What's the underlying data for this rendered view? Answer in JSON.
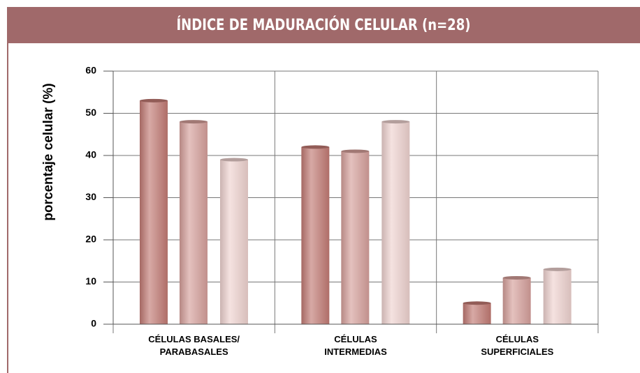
{
  "chart_data": {
    "type": "bar",
    "title": "ÍNDICE DE MADURACIÓN CELULAR (n=28)",
    "y_label": "porcentaje celular (%)",
    "categories": [
      "CÉLULAS BASALES/\nPARABASALES",
      "CÉLULAS\nINTERMEDIAS",
      "CÉLULAS\nSUPERFICIALES"
    ],
    "series": [
      {
        "color": "#c27a74",
        "values": [
          53,
          42,
          5
        ]
      },
      {
        "color": "#d6a09b",
        "values": [
          48,
          41,
          11
        ]
      },
      {
        "color": "#efd3d0",
        "values": [
          39,
          48,
          13
        ]
      }
    ],
    "ylim": [
      0,
      60
    ],
    "yticks": [
      0,
      10,
      20,
      30,
      40,
      50,
      60
    ],
    "grid": true
  }
}
